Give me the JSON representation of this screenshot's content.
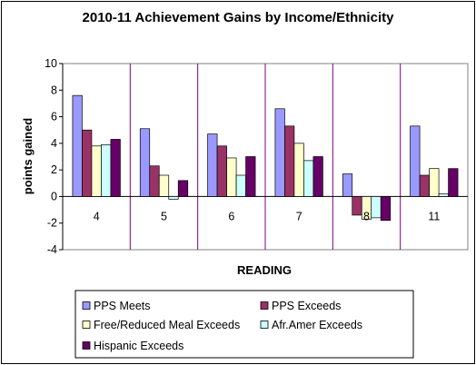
{
  "chart_data": {
    "type": "bar",
    "title": "2010-11 Achievement Gains by Income/Ethnicity",
    "xlabel": "READING",
    "ylabel": "points gained",
    "ylim": [
      -4,
      10
    ],
    "yticks": [
      -4,
      -2,
      0,
      2,
      4,
      6,
      8,
      10
    ],
    "categories": [
      "4",
      "5",
      "6",
      "7",
      "8",
      "11"
    ],
    "grid": "vertical category separators",
    "legend_position": "bottom",
    "series": [
      {
        "name": "PPS Meets",
        "color": "#9999ff",
        "values": [
          7.6,
          5.1,
          4.7,
          6.6,
          1.7,
          5.3
        ]
      },
      {
        "name": "PPS Exceeds",
        "color": "#993366",
        "values": [
          5.0,
          2.3,
          3.8,
          5.3,
          -1.4,
          1.6
        ]
      },
      {
        "name": "Free/Reduced Meal Exceeds",
        "color": "#ffffcc",
        "values": [
          3.8,
          1.6,
          2.9,
          4.0,
          -1.7,
          2.1
        ]
      },
      {
        "name": "Afr.Amer Exceeds",
        "color": "#ccffff",
        "values": [
          3.9,
          -0.2,
          1.6,
          2.7,
          -1.6,
          0.2
        ]
      },
      {
        "name": "Hispanic Exceeds",
        "color": "#660066",
        "values": [
          4.3,
          1.2,
          3.0,
          3.0,
          -1.8,
          2.1
        ]
      }
    ]
  }
}
